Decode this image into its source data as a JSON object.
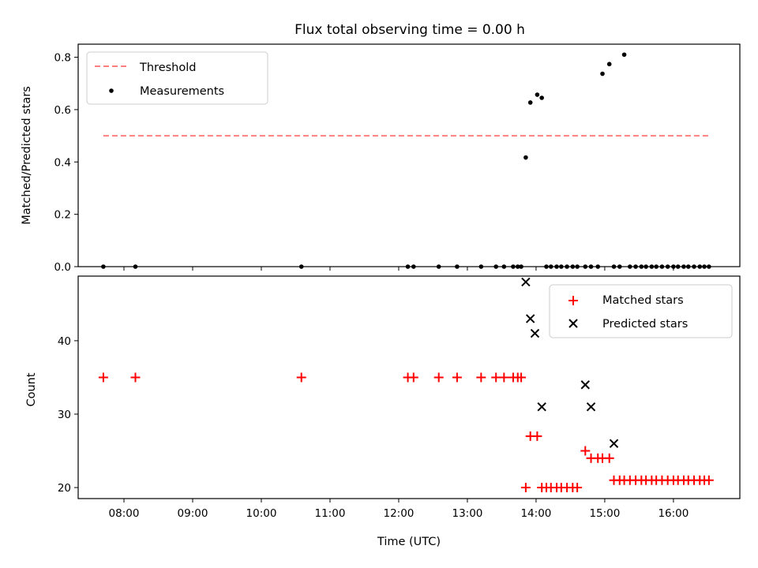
{
  "title": "Flux total observing time = 0.00 h",
  "chart_data": [
    {
      "type": "scatter",
      "ylabel": "Matched/Predicted stars",
      "xlim": [
        "07:20",
        "16:58"
      ],
      "ylim": [
        0,
        0.85
      ],
      "yticks": [
        0.0,
        0.2,
        0.4,
        0.6,
        0.8
      ],
      "ytick_labels": [
        "0.0",
        "0.2",
        "0.4",
        "0.6",
        "0.8"
      ],
      "grid": false,
      "legend_position": "upper-left",
      "series": [
        {
          "name": "Threshold",
          "kind": "line",
          "style": "dashed",
          "color": "#ff7f7f",
          "x": [
            "07:42",
            "16:31"
          ],
          "y": [
            0.5,
            0.5
          ]
        },
        {
          "name": "Measurements",
          "kind": "scatter",
          "marker": "dot",
          "color": "#000000",
          "x": [
            "07:42",
            "08:10",
            "10:35",
            "12:08",
            "12:13",
            "12:35",
            "12:51",
            "13:12",
            "13:25",
            "13:32",
            "13:40",
            "13:44",
            "13:47",
            "13:51",
            "13:55",
            "14:01",
            "14:05",
            "14:09",
            "14:13",
            "14:18",
            "14:22",
            "14:27",
            "14:32",
            "14:36",
            "14:43",
            "14:48",
            "14:54",
            "14:58",
            "15:04",
            "15:08",
            "15:13",
            "15:17",
            "15:22",
            "15:27",
            "15:32",
            "15:36",
            "15:41",
            "15:45",
            "15:50",
            "15:55",
            "16:00",
            "16:04",
            "16:09",
            "16:13",
            "16:18",
            "16:23",
            "16:27",
            "16:31"
          ],
          "y": [
            0,
            0,
            0,
            0,
            0,
            0,
            0,
            0,
            0,
            0,
            0,
            0,
            0,
            0.417,
            0.627,
            0.657,
            0.645,
            0,
            0,
            0,
            0,
            0,
            0,
            0,
            0,
            0,
            0,
            0.737,
            0.774,
            0,
            0,
            0.81,
            0,
            0,
            0,
            0,
            0,
            0,
            0,
            0,
            0,
            0,
            0,
            0,
            0,
            0,
            0,
            0
          ]
        }
      ]
    },
    {
      "type": "scatter",
      "xlabel": "Time (UTC)",
      "ylabel": "Count",
      "xlim": [
        "07:20",
        "16:58"
      ],
      "ylim": [
        18.5,
        48.8
      ],
      "xticks": [
        "08:00",
        "09:00",
        "10:00",
        "11:00",
        "12:00",
        "13:00",
        "14:00",
        "15:00",
        "16:00"
      ],
      "yticks": [
        20,
        30,
        40
      ],
      "ytick_labels": [
        "20",
        "30",
        "40"
      ],
      "grid": false,
      "legend_position": "upper-right",
      "series": [
        {
          "name": "Matched stars",
          "marker": "plus",
          "color": "#ff0000",
          "x": [
            "07:42",
            "08:10",
            "10:35",
            "12:08",
            "12:13",
            "12:35",
            "12:51",
            "13:12",
            "13:25",
            "13:32",
            "13:40",
            "13:44",
            "13:47",
            "13:51",
            "13:55",
            "14:01",
            "14:05",
            "14:09",
            "14:13",
            "14:18",
            "14:22",
            "14:27",
            "14:32",
            "14:36",
            "14:43",
            "14:48",
            "14:54",
            "14:58",
            "15:04",
            "15:08",
            "15:13",
            "15:17",
            "15:22",
            "15:27",
            "15:32",
            "15:36",
            "15:41",
            "15:45",
            "15:50",
            "15:55",
            "16:00",
            "16:04",
            "16:09",
            "16:13",
            "16:18",
            "16:23",
            "16:27",
            "16:31"
          ],
          "y": [
            35,
            35,
            35,
            35,
            35,
            35,
            35,
            35,
            35,
            35,
            35,
            35,
            35,
            20,
            27,
            27,
            20,
            20,
            20,
            20,
            20,
            20,
            20,
            20,
            25,
            24,
            24,
            24,
            24,
            21,
            21,
            21,
            21,
            21,
            21,
            21,
            21,
            21,
            21,
            21,
            21,
            21,
            21,
            21,
            21,
            21,
            21,
            21
          ]
        },
        {
          "name": "Predicted stars",
          "marker": "x",
          "color": "#000000",
          "x": [
            "13:51",
            "13:55",
            "13:59",
            "14:05",
            "14:43",
            "14:48",
            "15:08"
          ],
          "y": [
            48,
            43,
            41,
            31,
            34,
            31,
            26
          ]
        }
      ]
    }
  ]
}
